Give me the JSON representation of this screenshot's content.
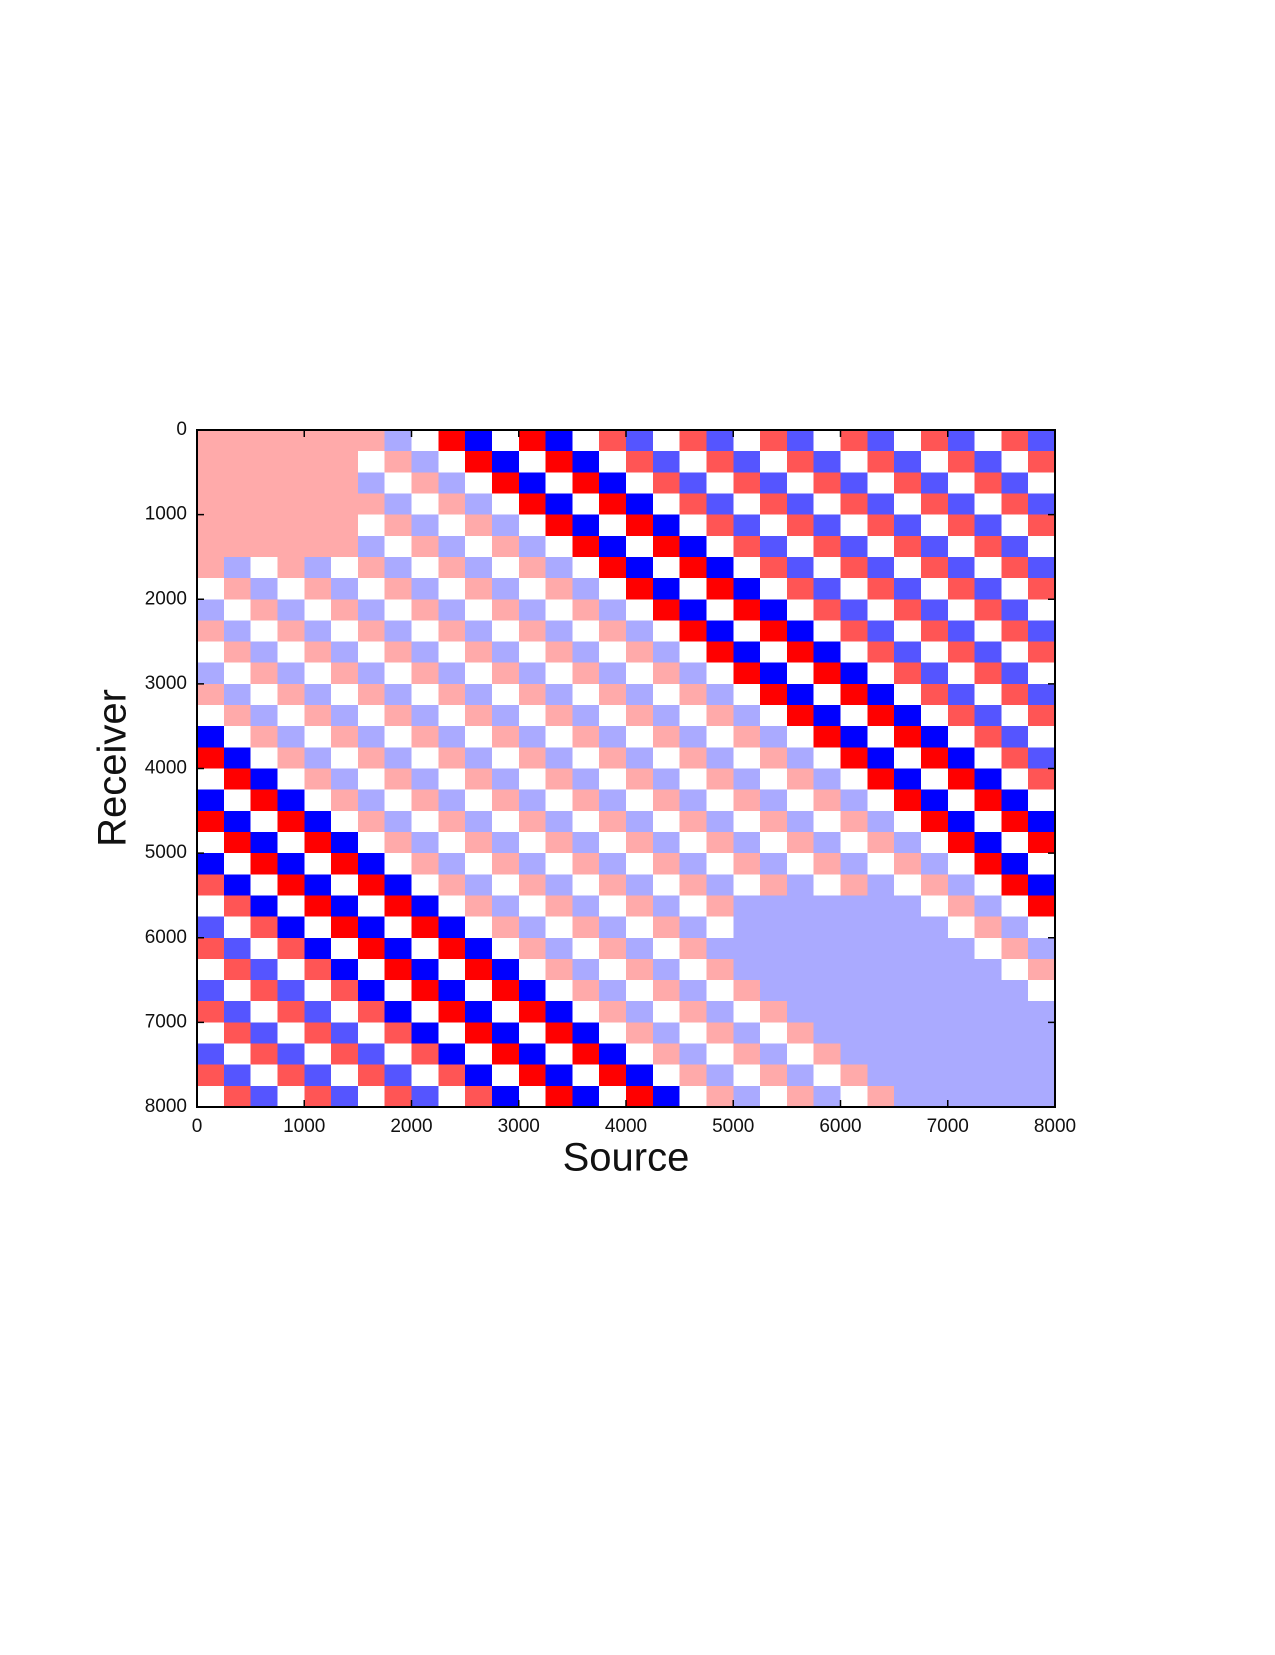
{
  "chart_data": {
    "type": "heatmap",
    "xlabel": "Source",
    "ylabel": "Receiver",
    "xlim": [
      0,
      8000
    ],
    "ylim": [
      0,
      8000
    ],
    "invert_y": true,
    "xticks": [
      0,
      1000,
      2000,
      3000,
      4000,
      5000,
      6000,
      7000,
      8000
    ],
    "yticks": [
      0,
      1000,
      2000,
      3000,
      4000,
      5000,
      6000,
      7000,
      8000
    ],
    "zlim": [
      -3,
      3
    ],
    "colormap": [
      "#0000ff",
      "#ffffff",
      "#ff0000"
    ],
    "values": [
      [
        1,
        1,
        1,
        1,
        1,
        1,
        1,
        -1,
        0,
        3,
        -3,
        0,
        3,
        -3,
        0,
        2,
        -2,
        0,
        2,
        -2,
        0,
        2,
        -2,
        0,
        2,
        -2,
        0,
        2,
        -2,
        0,
        2,
        -2
      ],
      [
        1,
        1,
        1,
        1,
        1,
        1,
        0,
        1,
        -1,
        0,
        3,
        -3,
        0,
        3,
        -3,
        0,
        2,
        -2,
        0,
        2,
        -2,
        0,
        2,
        -2,
        0,
        2,
        -2,
        0,
        2,
        -2,
        0,
        2
      ],
      [
        1,
        1,
        1,
        1,
        1,
        1,
        -1,
        0,
        1,
        -1,
        0,
        3,
        -3,
        0,
        3,
        -3,
        0,
        2,
        -2,
        0,
        2,
        -2,
        0,
        2,
        -2,
        0,
        2,
        -2,
        0,
        2,
        -2,
        0
      ],
      [
        1,
        1,
        1,
        1,
        1,
        1,
        1,
        -1,
        0,
        1,
        -1,
        0,
        3,
        -3,
        0,
        3,
        -3,
        0,
        2,
        -2,
        0,
        2,
        -2,
        0,
        2,
        -2,
        0,
        2,
        -2,
        0,
        2,
        -2
      ],
      [
        1,
        1,
        1,
        1,
        1,
        1,
        0,
        1,
        -1,
        0,
        1,
        -1,
        0,
        3,
        -3,
        0,
        3,
        -3,
        0,
        2,
        -2,
        0,
        2,
        -2,
        0,
        2,
        -2,
        0,
        2,
        -2,
        0,
        2
      ],
      [
        1,
        1,
        1,
        1,
        1,
        1,
        -1,
        0,
        1,
        -1,
        0,
        1,
        -1,
        0,
        3,
        -3,
        0,
        3,
        -3,
        0,
        2,
        -2,
        0,
        2,
        -2,
        0,
        2,
        -2,
        0,
        2,
        -2,
        0
      ],
      [
        1,
        -1,
        0,
        1,
        -1,
        0,
        1,
        -1,
        0,
        1,
        -1,
        0,
        1,
        -1,
        0,
        3,
        -3,
        0,
        3,
        -3,
        0,
        2,
        -2,
        0,
        2,
        -2,
        0,
        2,
        -2,
        0,
        2,
        -2
      ],
      [
        0,
        1,
        -1,
        0,
        1,
        -1,
        0,
        1,
        -1,
        0,
        1,
        -1,
        0,
        1,
        -1,
        0,
        3,
        -3,
        0,
        3,
        -3,
        0,
        2,
        -2,
        0,
        2,
        -2,
        0,
        2,
        -2,
        0,
        2
      ],
      [
        -1,
        0,
        1,
        -1,
        0,
        1,
        -1,
        0,
        1,
        -1,
        0,
        1,
        -1,
        0,
        1,
        -1,
        0,
        3,
        -3,
        0,
        3,
        -3,
        0,
        2,
        -2,
        0,
        2,
        -2,
        0,
        2,
        -2,
        0
      ],
      [
        1,
        -1,
        0,
        1,
        -1,
        0,
        1,
        -1,
        0,
        1,
        -1,
        0,
        1,
        -1,
        0,
        1,
        -1,
        0,
        3,
        -3,
        0,
        3,
        -3,
        0,
        2,
        -2,
        0,
        2,
        -2,
        0,
        2,
        -2
      ],
      [
        0,
        1,
        -1,
        0,
        1,
        -1,
        0,
        1,
        -1,
        0,
        1,
        -1,
        0,
        1,
        -1,
        0,
        1,
        -1,
        0,
        3,
        -3,
        0,
        3,
        -3,
        0,
        2,
        -2,
        0,
        2,
        -2,
        0,
        2
      ],
      [
        -1,
        0,
        1,
        -1,
        0,
        1,
        -1,
        0,
        1,
        -1,
        0,
        1,
        -1,
        0,
        1,
        -1,
        0,
        1,
        -1,
        0,
        3,
        -3,
        0,
        3,
        -3,
        0,
        2,
        -2,
        0,
        2,
        -2,
        0
      ],
      [
        1,
        -1,
        0,
        1,
        -1,
        0,
        1,
        -1,
        0,
        1,
        -1,
        0,
        1,
        -1,
        0,
        1,
        -1,
        0,
        1,
        -1,
        0,
        3,
        -3,
        0,
        3,
        -3,
        0,
        2,
        -2,
        0,
        2,
        -2
      ],
      [
        0,
        1,
        -1,
        0,
        1,
        -1,
        0,
        1,
        -1,
        0,
        1,
        -1,
        0,
        1,
        -1,
        0,
        1,
        -1,
        0,
        1,
        -1,
        0,
        3,
        -3,
        0,
        3,
        -3,
        0,
        2,
        -2,
        0,
        2
      ],
      [
        -3,
        0,
        1,
        -1,
        0,
        1,
        -1,
        0,
        1,
        -1,
        0,
        1,
        -1,
        0,
        1,
        -1,
        0,
        1,
        -1,
        0,
        1,
        -1,
        0,
        3,
        -3,
        0,
        3,
        -3,
        0,
        2,
        -2,
        0
      ],
      [
        3,
        -3,
        0,
        1,
        -1,
        0,
        1,
        -1,
        0,
        1,
        -1,
        0,
        1,
        -1,
        0,
        1,
        -1,
        0,
        1,
        -1,
        0,
        1,
        -1,
        0,
        3,
        -3,
        0,
        3,
        -3,
        0,
        2,
        -2
      ],
      [
        0,
        3,
        -3,
        0,
        1,
        -1,
        0,
        1,
        -1,
        0,
        1,
        -1,
        0,
        1,
        -1,
        0,
        1,
        -1,
        0,
        1,
        -1,
        0,
        1,
        -1,
        0,
        3,
        -3,
        0,
        3,
        -3,
        0,
        2
      ],
      [
        -3,
        0,
        3,
        -3,
        0,
        1,
        -1,
        0,
        1,
        -1,
        0,
        1,
        -1,
        0,
        1,
        -1,
        0,
        1,
        -1,
        0,
        1,
        -1,
        0,
        1,
        -1,
        0,
        3,
        -3,
        0,
        3,
        -3,
        0
      ],
      [
        3,
        -3,
        0,
        3,
        -3,
        0,
        1,
        -1,
        0,
        1,
        -1,
        0,
        1,
        -1,
        0,
        1,
        -1,
        0,
        1,
        -1,
        0,
        1,
        -1,
        0,
        1,
        -1,
        0,
        3,
        -3,
        0,
        3,
        -3
      ],
      [
        0,
        3,
        -3,
        0,
        3,
        -3,
        0,
        1,
        -1,
        0,
        1,
        -1,
        0,
        1,
        -1,
        0,
        1,
        -1,
        0,
        1,
        -1,
        0,
        1,
        -1,
        0,
        1,
        -1,
        0,
        3,
        -3,
        0,
        3
      ],
      [
        -3,
        0,
        3,
        -3,
        0,
        3,
        -3,
        0,
        1,
        -1,
        0,
        1,
        -1,
        0,
        1,
        -1,
        0,
        1,
        -1,
        0,
        1,
        -1,
        0,
        1,
        -1,
        0,
        1,
        -1,
        0,
        3,
        -3,
        0
      ],
      [
        2,
        -3,
        0,
        3,
        -3,
        0,
        3,
        -3,
        0,
        1,
        -1,
        0,
        1,
        -1,
        0,
        1,
        -1,
        0,
        1,
        -1,
        0,
        1,
        -1,
        0,
        1,
        -1,
        0,
        1,
        -1,
        0,
        3,
        -3
      ],
      [
        0,
        2,
        -3,
        0,
        3,
        -3,
        0,
        3,
        -3,
        0,
        1,
        -1,
        0,
        1,
        -1,
        0,
        1,
        -1,
        0,
        1,
        -1,
        -1,
        -1,
        -1,
        -1,
        -1,
        -1,
        0,
        1,
        -1,
        0,
        3
      ],
      [
        -2,
        0,
        2,
        -3,
        0,
        3,
        -3,
        0,
        3,
        -3,
        0,
        1,
        -1,
        0,
        1,
        -1,
        0,
        1,
        -1,
        0,
        -1,
        -1,
        -1,
        -1,
        -1,
        -1,
        -1,
        -1,
        0,
        1,
        -1,
        0
      ],
      [
        2,
        -2,
        0,
        2,
        -3,
        0,
        3,
        -3,
        0,
        3,
        -3,
        0,
        1,
        -1,
        0,
        1,
        -1,
        0,
        1,
        -1,
        -1,
        -1,
        -1,
        -1,
        -1,
        -1,
        -1,
        -1,
        -1,
        0,
        1,
        -1
      ],
      [
        0,
        2,
        -2,
        0,
        2,
        -3,
        0,
        3,
        -3,
        0,
        3,
        -3,
        0,
        1,
        -1,
        0,
        1,
        -1,
        0,
        1,
        -1,
        -1,
        -1,
        -1,
        -1,
        -1,
        -1,
        -1,
        -1,
        -1,
        0,
        1
      ],
      [
        -2,
        0,
        2,
        -2,
        0,
        2,
        -3,
        0,
        3,
        -3,
        0,
        3,
        -3,
        0,
        1,
        -1,
        0,
        1,
        -1,
        0,
        1,
        -1,
        -1,
        -1,
        -1,
        -1,
        -1,
        -1,
        -1,
        -1,
        -1,
        0
      ],
      [
        2,
        -2,
        0,
        2,
        -2,
        0,
        2,
        -3,
        0,
        3,
        -3,
        0,
        3,
        -3,
        0,
        1,
        -1,
        0,
        1,
        -1,
        0,
        1,
        -1,
        -1,
        -1,
        -1,
        -1,
        -1,
        -1,
        -1,
        -1,
        -1
      ],
      [
        0,
        2,
        -2,
        0,
        2,
        -2,
        0,
        2,
        -3,
        0,
        3,
        -3,
        0,
        3,
        -3,
        0,
        1,
        -1,
        0,
        1,
        -1,
        0,
        1,
        -1,
        -1,
        -1,
        -1,
        -1,
        -1,
        -1,
        -1,
        -1
      ],
      [
        -2,
        0,
        2,
        -2,
        0,
        2,
        -2,
        0,
        2,
        -3,
        0,
        3,
        -3,
        0,
        3,
        -3,
        0,
        1,
        -1,
        0,
        1,
        -1,
        0,
        1,
        -1,
        -1,
        -1,
        -1,
        -1,
        -1,
        -1,
        -1
      ],
      [
        2,
        -2,
        0,
        2,
        -2,
        0,
        2,
        -2,
        0,
        2,
        -3,
        0,
        3,
        -3,
        0,
        3,
        -3,
        0,
        1,
        -1,
        0,
        1,
        -1,
        0,
        1,
        -1,
        -1,
        -1,
        -1,
        -1,
        -1,
        -1
      ],
      [
        0,
        2,
        -2,
        0,
        2,
        -2,
        0,
        2,
        -2,
        0,
        2,
        -3,
        0,
        3,
        -3,
        0,
        3,
        -3,
        0,
        1,
        -1,
        0,
        1,
        -1,
        0,
        1,
        -1,
        -1,
        -1,
        -1,
        -1,
        -1
      ]
    ]
  }
}
